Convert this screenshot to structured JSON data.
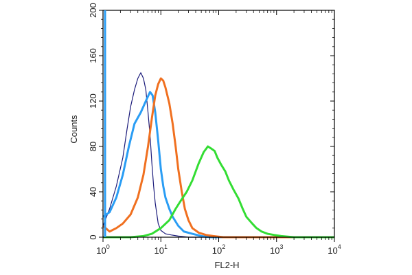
{
  "chart_data": {
    "type": "line",
    "title": "",
    "xlabel": "FL2-H",
    "ylabel": "Counts",
    "x_scale": "log",
    "xlim": [
      1,
      10000
    ],
    "ylim": [
      0,
      200
    ],
    "y_ticks": [
      0,
      40,
      80,
      120,
      160,
      200
    ],
    "x_ticks": [
      {
        "base": "10",
        "exp": "0",
        "value": 1
      },
      {
        "base": "10",
        "exp": "1",
        "value": 10
      },
      {
        "base": "10",
        "exp": "2",
        "value": 100
      },
      {
        "base": "10",
        "exp": "3",
        "value": 1000
      },
      {
        "base": "10",
        "exp": "4",
        "value": 10000
      }
    ],
    "grid": false,
    "legend": "none",
    "series": [
      {
        "color": "#1a1a7a",
        "points": [
          [
            1.0,
            10
          ],
          [
            1.3,
            25
          ],
          [
            1.7,
            45
          ],
          [
            2.2,
            70
          ],
          [
            2.6,
            95
          ],
          [
            3.0,
            115
          ],
          [
            3.5,
            130
          ],
          [
            4.0,
            140
          ],
          [
            4.5,
            145
          ],
          [
            5.0,
            140
          ],
          [
            5.5,
            130
          ],
          [
            6.0,
            110
          ],
          [
            6.5,
            90
          ],
          [
            7.0,
            65
          ],
          [
            7.5,
            45
          ],
          [
            8.0,
            30
          ],
          [
            9.0,
            12
          ],
          [
            10.0,
            6
          ],
          [
            12.0,
            3
          ],
          [
            15.0,
            2
          ],
          [
            20.0,
            1
          ],
          [
            30.0,
            0
          ],
          [
            10000,
            0
          ]
        ]
      },
      {
        "color": "#2a9df4",
        "points": [
          [
            1.0,
            18
          ],
          [
            1.3,
            22
          ],
          [
            1.7,
            35
          ],
          [
            2.2,
            55
          ],
          [
            2.8,
            80
          ],
          [
            3.5,
            100
          ],
          [
            4.5,
            110
          ],
          [
            5.5,
            120
          ],
          [
            6.5,
            128
          ],
          [
            7.2,
            125
          ],
          [
            8.0,
            110
          ],
          [
            9.0,
            85
          ],
          [
            10.0,
            60
          ],
          [
            11.0,
            45
          ],
          [
            12.0,
            35
          ],
          [
            14.0,
            25
          ],
          [
            16.0,
            18
          ],
          [
            20.0,
            10
          ],
          [
            25.0,
            5
          ],
          [
            35.0,
            3
          ],
          [
            50.0,
            1
          ],
          [
            70.0,
            0
          ],
          [
            10000,
            0
          ]
        ]
      },
      {
        "color": "#f07020",
        "points": [
          [
            1.0,
            10
          ],
          [
            1.3,
            5
          ],
          [
            1.7,
            8
          ],
          [
            2.2,
            12
          ],
          [
            3.0,
            20
          ],
          [
            4.0,
            35
          ],
          [
            5.0,
            55
          ],
          [
            6.0,
            80
          ],
          [
            7.0,
            105
          ],
          [
            8.0,
            125
          ],
          [
            9.0,
            135
          ],
          [
            10.0,
            140
          ],
          [
            11.0,
            138
          ],
          [
            12.0,
            132
          ],
          [
            14.0,
            118
          ],
          [
            16.0,
            100
          ],
          [
            18.0,
            80
          ],
          [
            20.0,
            60
          ],
          [
            23.0,
            40
          ],
          [
            26.0,
            25
          ],
          [
            30.0,
            15
          ],
          [
            35.0,
            8
          ],
          [
            45.0,
            4
          ],
          [
            60.0,
            2
          ],
          [
            80.0,
            1
          ],
          [
            120.0,
            0
          ],
          [
            10000,
            0
          ]
        ]
      },
      {
        "color": "#33dd33",
        "points": [
          [
            1.0,
            0
          ],
          [
            3.0,
            0
          ],
          [
            5.0,
            1
          ],
          [
            7.0,
            3
          ],
          [
            10.0,
            8
          ],
          [
            14.0,
            15
          ],
          [
            18.0,
            25
          ],
          [
            22.0,
            32
          ],
          [
            28.0,
            40
          ],
          [
            35.0,
            50
          ],
          [
            45.0,
            65
          ],
          [
            55.0,
            75
          ],
          [
            65.0,
            80
          ],
          [
            75.0,
            78
          ],
          [
            85.0,
            76
          ],
          [
            95.0,
            70
          ],
          [
            110.0,
            64
          ],
          [
            130.0,
            58
          ],
          [
            150.0,
            50
          ],
          [
            180.0,
            42
          ],
          [
            220.0,
            34
          ],
          [
            260.0,
            25
          ],
          [
            300.0,
            18
          ],
          [
            380.0,
            12
          ],
          [
            450.0,
            8
          ],
          [
            550.0,
            5
          ],
          [
            700.0,
            3
          ],
          [
            900.0,
            2
          ],
          [
            1200.0,
            1
          ],
          [
            2000.0,
            0
          ],
          [
            10000,
            0
          ]
        ]
      }
    ]
  }
}
